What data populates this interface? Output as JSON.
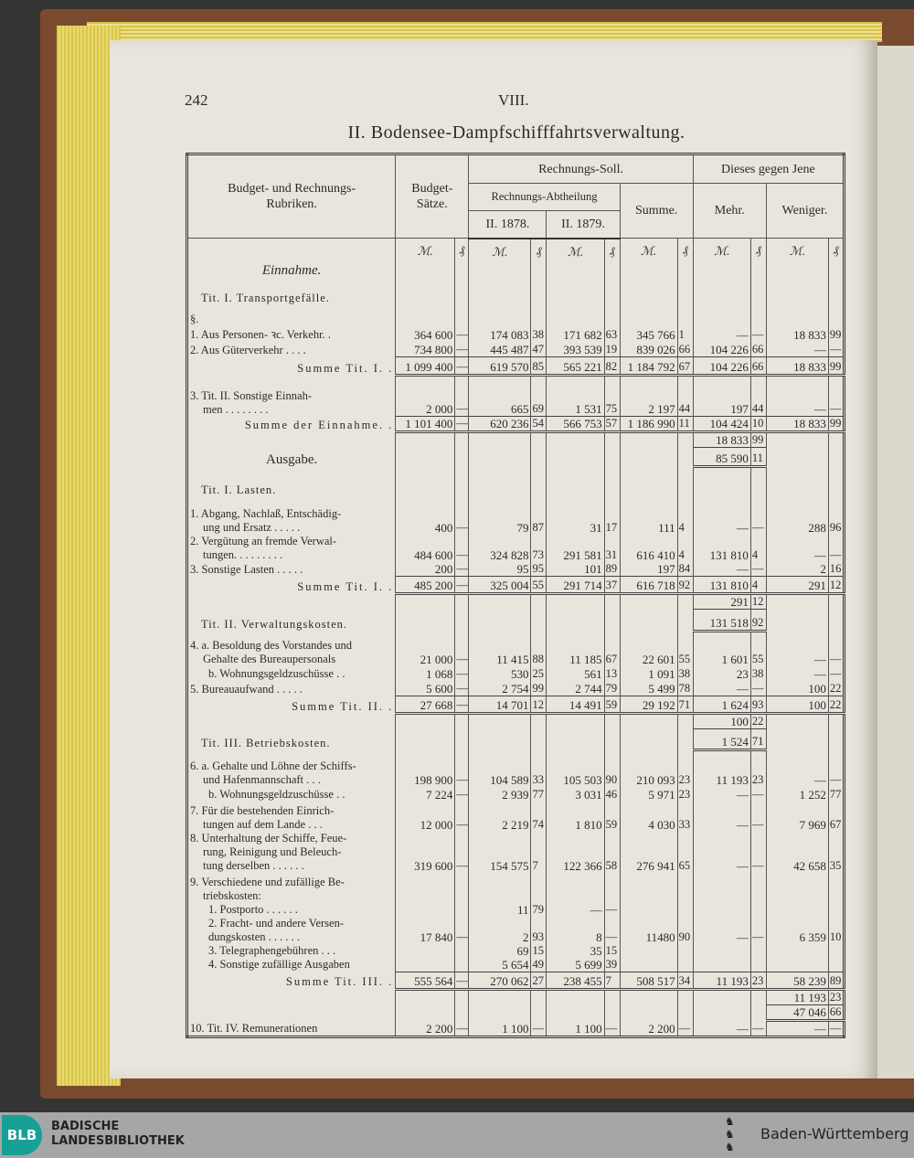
{
  "page": {
    "number": "242",
    "chapter": "VIII.",
    "title": "II. Bodensee-Dampfschifffahrtsverwaltung."
  },
  "header": {
    "rubriken": "Budget- und Rechnungs-Rubriken.",
    "budget": "Budget-Sätze.",
    "soll": "Rechnungs-Soll.",
    "vergleich": "Dieses gegen Jene",
    "abtheilung": "Rechnungs-Abtheilung",
    "summe": "Summe.",
    "mehr": "Mehr.",
    "weniger": "Weniger.",
    "y1878": "II. 1878.",
    "y1879": "II. 1879.",
    "mark": "ℳ.",
    "pf": "₰"
  },
  "rows": [
    {
      "label": [
        "Einnahme."
      ],
      "align": "center",
      "type": "units"
    },
    {
      "label": [
        "Tit. I. Transportgefälle."
      ],
      "align": "head"
    },
    {
      "label": [
        "§."
      ]
    },
    {
      "label": [
        "1. Aus Personen- ꝛc. Verkehr. ."
      ],
      "cells": [
        "364 600",
        "—",
        "174 083",
        "38",
        "171 682",
        "63",
        "345 766",
        "1",
        "—",
        "—",
        "18 833",
        "99"
      ]
    },
    {
      "label": [
        "2. Aus Güterverkehr . . . ."
      ],
      "cells": [
        "734 800",
        "—",
        "445 487",
        "47",
        "393 539",
        "19",
        "839 026",
        "66",
        "104 226",
        "66",
        "—",
        "—"
      ]
    },
    {
      "label": [
        "Summe Tit. I. ."
      ],
      "align": "sum",
      "sum": true,
      "cells": [
        "1 099 400",
        "—",
        "619 570",
        "85",
        "565 221",
        "82",
        "1 184 792",
        "67",
        "104 226",
        "66",
        "18 833",
        "99"
      ]
    },
    {
      "label": [
        "3. Tit. II. Sonstige Einnah-",
        "men . . . . . . . ."
      ],
      "cells": [
        "2 000",
        "—",
        "665",
        "69",
        "1 531",
        "75",
        "2 197",
        "44",
        "197",
        "44",
        "—",
        "—"
      ]
    },
    {
      "label": [
        "Summe der Einnahme. ."
      ],
      "align": "sum",
      "sum": true,
      "cells": [
        "1 101 400",
        "—",
        "620 236",
        "54",
        "566 753",
        "57",
        "1 186 990",
        "11",
        "104 424",
        "10",
        "18 833",
        "99"
      ]
    },
    {
      "label": [
        ""
      ],
      "cells": [
        "",
        "",
        "",
        "",
        "",
        "",
        "",
        "",
        "18 833",
        "99",
        "",
        ""
      ]
    },
    {
      "label": [
        "Ausgabe."
      ],
      "align": "center",
      "line": [
        8,
        9
      ],
      "cells": [
        "",
        "",
        "",
        "",
        "",
        "",
        "",
        "",
        "85 590",
        "11",
        "",
        ""
      ]
    },
    {
      "label": [
        "Tit. I. Lasten."
      ],
      "align": "head"
    },
    {
      "label": [
        "1. Abgang, Nachlaß, Entschädig-",
        "ung und Ersatz . . . . ."
      ],
      "cells": [
        "400",
        "—",
        "79",
        "87",
        "31",
        "17",
        "111",
        "4",
        "—",
        "—",
        "288",
        "96"
      ]
    },
    {
      "label": [
        "2. Vergütung an fremde Verwal-",
        "tungen. . . . . . . . ."
      ],
      "cells": [
        "484 600",
        "—",
        "324 828",
        "73",
        "291 581",
        "31",
        "616 410",
        "4",
        "131 810",
        "4",
        "—",
        "—"
      ]
    },
    {
      "label": [
        "3. Sonstige Lasten . . . . ."
      ],
      "cells": [
        "200",
        "—",
        "95",
        "95",
        "101",
        "89",
        "197",
        "84",
        "—",
        "—",
        "2",
        "16"
      ]
    },
    {
      "label": [
        "Summe Tit. I. ."
      ],
      "align": "sum",
      "sum": true,
      "cells": [
        "485 200",
        "—",
        "325 004",
        "55",
        "291 714",
        "37",
        "616 718",
        "92",
        "131 810",
        "4",
        "291",
        "12"
      ]
    },
    {
      "label": [
        ""
      ],
      "cells": [
        "",
        "",
        "",
        "",
        "",
        "",
        "",
        "",
        "291",
        "12",
        "",
        ""
      ]
    },
    {
      "label": [
        "Tit. II. Verwaltungskosten."
      ],
      "align": "head",
      "line": [
        8,
        9
      ],
      "cells": [
        "",
        "",
        "",
        "",
        "",
        "",
        "",
        "",
        "131 518",
        "92",
        "",
        ""
      ]
    },
    {
      "label": [
        "4. a. Besoldung des Vorstandes und",
        "Gehalte des Bureaupersonals"
      ],
      "cells": [
        "21 000",
        "—",
        "11 415",
        "88",
        "11 185",
        "67",
        "22 601",
        "55",
        "1 601",
        "55",
        "—",
        "—"
      ]
    },
    {
      "label": [
        "b. Wohnungsgeldzuschüsse . ."
      ],
      "align": "sub",
      "cells": [
        "1 068",
        "—",
        "530",
        "25",
        "561",
        "13",
        "1 091",
        "38",
        "23",
        "38",
        "—",
        "—"
      ]
    },
    {
      "label": [
        "5. Bureauaufwand . . . . ."
      ],
      "cells": [
        "5 600",
        "—",
        "2 754",
        "99",
        "2 744",
        "79",
        "5 499",
        "78",
        "—",
        "—",
        "100",
        "22"
      ]
    },
    {
      "label": [
        "Summe Tit. II. ."
      ],
      "align": "sum",
      "sum": true,
      "cells": [
        "27 668",
        "—",
        "14 701",
        "12",
        "14 491",
        "59",
        "29 192",
        "71",
        "1 624",
        "93",
        "100",
        "22"
      ]
    },
    {
      "label": [
        ""
      ],
      "cells": [
        "",
        "",
        "",
        "",
        "",
        "",
        "",
        "",
        "100",
        "22",
        "",
        ""
      ]
    },
    {
      "label": [
        "Tit. III. Betriebskosten."
      ],
      "align": "head",
      "line": [
        8,
        9
      ],
      "cells": [
        "",
        "",
        "",
        "",
        "",
        "",
        "",
        "",
        "1 524",
        "71",
        "",
        ""
      ]
    },
    {
      "label": [
        "6. a. Gehalte und Löhne der Schiffs-",
        "und Hafenmannschaft . . ."
      ],
      "cells": [
        "198 900",
        "—",
        "104 589",
        "33",
        "105 503",
        "90",
        "210 093",
        "23",
        "11 193",
        "23",
        "—",
        "—"
      ]
    },
    {
      "label": [
        "b. Wohnungsgeldzuschüsse . ."
      ],
      "align": "sub",
      "cells": [
        "7 224",
        "—",
        "2 939",
        "77",
        "3 031",
        "46",
        "5 971",
        "23",
        "—",
        "—",
        "1 252",
        "77"
      ]
    },
    {
      "label": [
        "7. Für die bestehenden Einrich-",
        "tungen auf dem Lande . . ."
      ],
      "cells": [
        "12 000",
        "—",
        "2 219",
        "74",
        "1 810",
        "59",
        "4 030",
        "33",
        "—",
        "—",
        "7 969",
        "67"
      ]
    },
    {
      "label": [
        "8. Unterhaltung der Schiffe, Feue-",
        "rung, Reinigung und Beleuch-",
        "tung derselben . . . . . ."
      ],
      "cells": [
        "319 600",
        "—",
        "154 575",
        "7",
        "122 366",
        "58",
        "276 941",
        "65",
        "—",
        "—",
        "42 658",
        "35"
      ]
    },
    {
      "label": [
        "9. Verschiedene und zufällige Be-",
        "triebskosten:"
      ]
    },
    {
      "label": [
        "1. Postporto . . . . . ."
      ],
      "align": "sub",
      "cells": [
        "",
        "",
        "11",
        "79",
        "—",
        "—",
        "",
        "",
        "",
        "",
        "",
        ""
      ]
    },
    {
      "label": [
        "2. Fracht- und andere Versen-",
        "dungskosten . . . . . ."
      ],
      "align": "sub",
      "cells": [
        "17 840",
        "—",
        "2",
        "93",
        "8",
        "—",
        "11480",
        "90",
        "—",
        "—",
        "6 359",
        "10"
      ]
    },
    {
      "label": [
        "3. Telegraphengebühren . . ."
      ],
      "align": "sub",
      "cells": [
        "",
        "",
        "69",
        "15",
        "35",
        "15",
        "",
        "",
        "",
        "",
        "",
        ""
      ]
    },
    {
      "label": [
        "4. Sonstige zufällige Ausgaben"
      ],
      "align": "sub",
      "cells": [
        "",
        "",
        "5 654",
        "49",
        "5 699",
        "39",
        "",
        "",
        "",
        "",
        "",
        ""
      ]
    },
    {
      "label": [
        "Summe Tit. III. ."
      ],
      "align": "sum",
      "sum": true,
      "cells": [
        "555 564",
        "—",
        "270 062",
        "27",
        "238 455",
        "7",
        "508 517",
        "34",
        "11 193",
        "23",
        "58 239",
        "89"
      ]
    },
    {
      "label": [
        ""
      ],
      "cells": [
        "",
        "",
        "",
        "",
        "",
        "",
        "",
        "",
        "",
        "",
        "11 193",
        "23"
      ]
    },
    {
      "label": [
        ""
      ],
      "line": [
        10,
        11
      ],
      "cells": [
        "",
        "",
        "",
        "",
        "",
        "",
        "",
        "",
        "",
        "",
        "47 046",
        "66"
      ]
    },
    {
      "label": [
        "10. Tit. IV. Remunerationen"
      ],
      "cells": [
        "2 200",
        "—",
        "1 100",
        "—",
        "1 100",
        "—",
        "2 200",
        "—",
        "—",
        "—",
        "—",
        "—"
      ]
    }
  ],
  "footer": {
    "library_abbr": "BLB",
    "library_line1": "BADISCHE",
    "library_line2": "LANDESBIBLIOTHEK",
    "state": "Baden-Württemberg"
  },
  "colors": {
    "paper": "#e8e5dc",
    "cover": "#7a4a2e",
    "blb_teal": "#17a096",
    "footer_bg": "#a6a6a6"
  }
}
